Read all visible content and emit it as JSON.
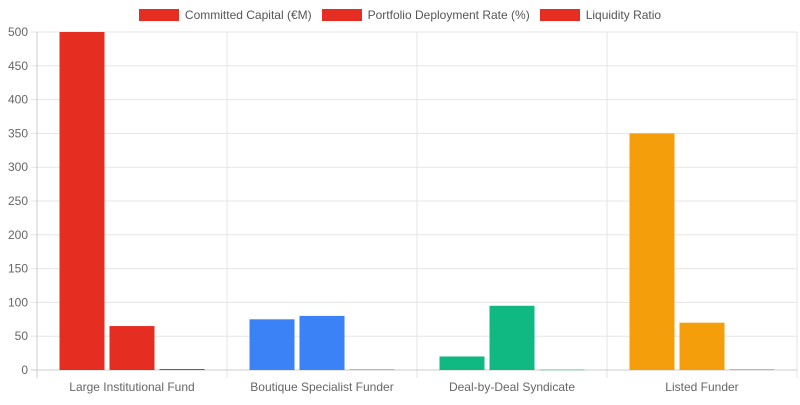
{
  "chart_data": {
    "type": "bar",
    "categories": [
      "Large Institutional Fund",
      "Boutique Specialist Funder",
      "Deal-by-Deal Syndicate",
      "Listed Funder"
    ],
    "series": [
      {
        "name": "Committed Capital (€M)",
        "values": [
          500,
          75,
          20,
          350
        ]
      },
      {
        "name": "Portfolio Deployment Rate (%)",
        "values": [
          65,
          80,
          95,
          70
        ]
      },
      {
        "name": "Liquidity Ratio",
        "values": [
          1.5,
          0.8,
          0.5,
          1.2
        ]
      }
    ],
    "category_colors": [
      "#e52d21",
      "#3b82f6",
      "#10b981",
      "#f59e0b"
    ],
    "legend_color": "#e52d21",
    "ylim": [
      0,
      500
    ],
    "yticks": [
      0,
      50,
      100,
      150,
      200,
      250,
      300,
      350,
      400,
      450,
      500
    ],
    "grid": true,
    "legend_position": "top-center"
  }
}
